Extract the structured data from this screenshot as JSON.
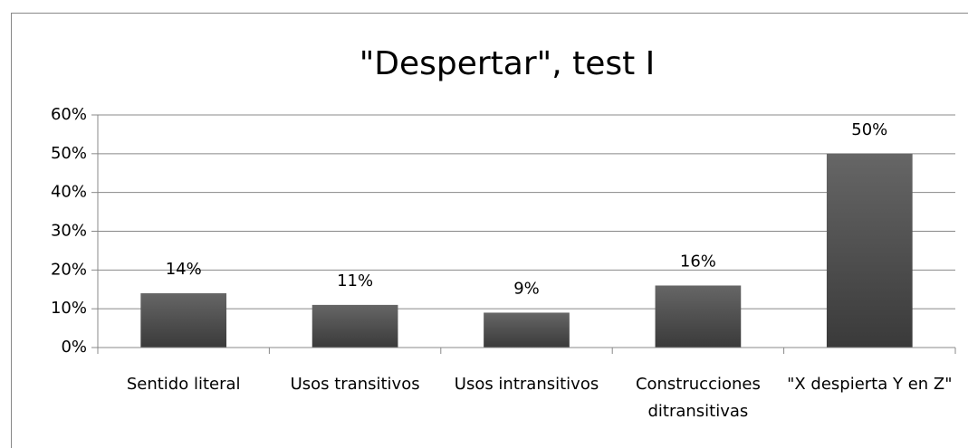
{
  "chart_data": {
    "type": "bar",
    "title": "\"Despertar\", test I",
    "categories": [
      "Sentido literal",
      "Usos transitivos",
      "Usos intransitivos",
      "Construcciones ditransitivas",
      "\"X despierta Y en Z\""
    ],
    "values": [
      14,
      11,
      9,
      16,
      50
    ],
    "value_labels": [
      "14%",
      "11%",
      "9%",
      "16%",
      "50%"
    ],
    "color": "#555555",
    "ylim": [
      0,
      60
    ],
    "yticks": [
      {
        "value": 0,
        "label": "0%"
      },
      {
        "value": 10,
        "label": "10%"
      },
      {
        "value": 20,
        "label": "20%"
      },
      {
        "value": 30,
        "label": "30%"
      },
      {
        "value": 40,
        "label": "40%"
      },
      {
        "value": 50,
        "label": "50%"
      },
      {
        "value": 60,
        "label": "60%"
      }
    ],
    "grid": true
  }
}
